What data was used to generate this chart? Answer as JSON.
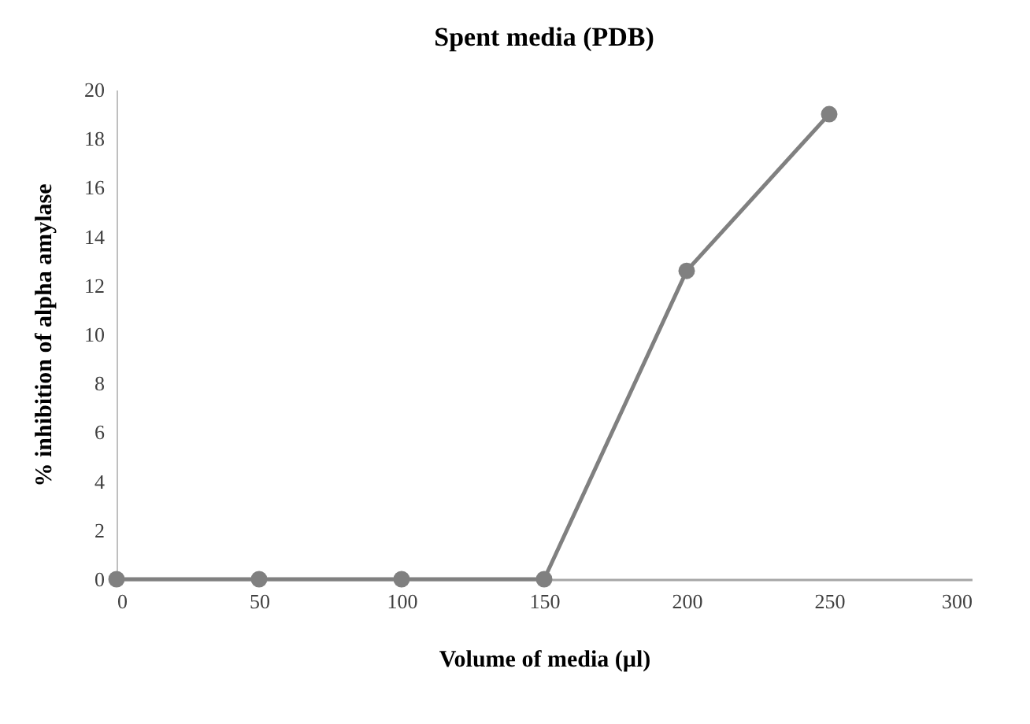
{
  "chart_data": {
    "type": "line",
    "title": "Spent media (PDB)",
    "xlabel": "Volume of media (µl)",
    "ylabel": "% inhibition of alpha amylase",
    "x": [
      0,
      50,
      100,
      150,
      200,
      250
    ],
    "series": [
      {
        "color": "#808080",
        "values": [
          0,
          0,
          0,
          0,
          12.6,
          19
        ]
      }
    ],
    "xlim": [
      0,
      300
    ],
    "xticks": [
      0,
      50,
      100,
      150,
      200,
      250,
      300
    ],
    "ylim": [
      0,
      20
    ],
    "yticks": [
      0,
      2,
      4,
      6,
      8,
      10,
      12,
      14,
      16,
      18,
      20
    ],
    "grid": false,
    "legend": false,
    "marker": "circle",
    "line_style": "solid"
  }
}
